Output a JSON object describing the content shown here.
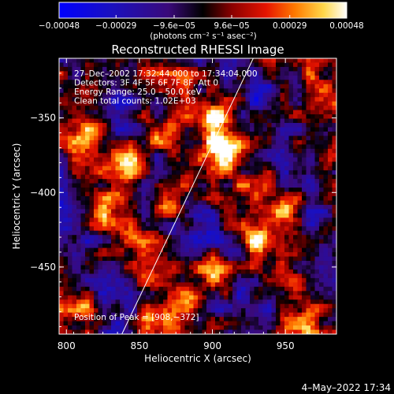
{
  "chart_data": {
    "type": "heatmap",
    "title": "Reconstructed RHESSI Image",
    "xlabel": "Heliocentric X (arcsec)",
    "ylabel": "Heliocentric Y (arcsec)",
    "xlim": [
      795,
      985
    ],
    "ylim": [
      -495,
      -310
    ],
    "x_ticks": [
      800,
      850,
      900,
      950
    ],
    "x_tick_labels": [
      "800",
      "850",
      "900",
      "950"
    ],
    "y_ticks": [
      -350,
      -400,
      -450
    ],
    "y_tick_labels": [
      "−350",
      "−400",
      "−450"
    ],
    "colorbar": {
      "range": [
        -0.00048,
        0.00048
      ],
      "tick_values": [
        -0.00048,
        -0.00029,
        -9.6e-05,
        9.6e-05,
        0.00029,
        0.00048
      ],
      "tick_labels": [
        "−0.00048",
        "−0.00029",
        "−9.6e−05",
        "9.6e−05",
        "0.00029",
        "0.00048"
      ],
      "unit_label": "(photons cm⁻² s⁻¹ asec⁻²)"
    },
    "annotations": [
      "27–Dec–2002 17:32:44.000 to 17:34:04.000",
      "Detectors: 3F 4F 5F 6F 7F 8F, Att 0",
      "Energy Range: 25.0 – 50.0 keV",
      "Clean     total counts: 1.02E+03"
    ],
    "peak_label": "Position of Peak = [908,−372]",
    "peak": [
      908,
      -372
    ],
    "limb_line": [
      [
        838,
        -495
      ],
      [
        928,
        -310
      ]
    ],
    "sources": [
      {
        "x": 908,
        "y": -372,
        "amp": 1.0
      },
      {
        "x": 902,
        "y": -353,
        "amp": 0.75
      },
      {
        "x": 870,
        "y": -405,
        "amp": 0.9
      },
      {
        "x": 860,
        "y": -360,
        "amp": 0.75
      },
      {
        "x": 845,
        "y": -382,
        "amp": 0.6
      },
      {
        "x": 815,
        "y": -360,
        "amp": 0.55
      },
      {
        "x": 825,
        "y": -420,
        "amp": 0.4
      },
      {
        "x": 900,
        "y": -452,
        "amp": 0.75
      },
      {
        "x": 930,
        "y": -432,
        "amp": 0.6
      },
      {
        "x": 952,
        "y": -410,
        "amp": 0.55
      },
      {
        "x": 885,
        "y": -470,
        "amp": 0.65
      },
      {
        "x": 862,
        "y": -485,
        "amp": 0.55
      },
      {
        "x": 810,
        "y": -478,
        "amp": 0.55
      },
      {
        "x": 960,
        "y": -490,
        "amp": 0.45
      },
      {
        "x": 935,
        "y": -395,
        "amp": 0.4
      },
      {
        "x": 885,
        "y": -392,
        "amp": 0.5
      }
    ]
  },
  "footer": {
    "timestamp": "4–May–2022 17:34"
  }
}
